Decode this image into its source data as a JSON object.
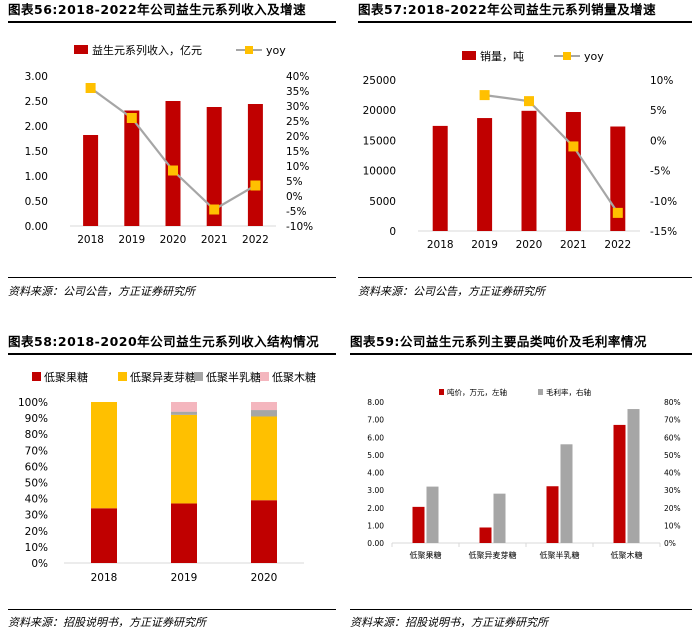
{
  "colors": {
    "red": "#C00000",
    "gold": "#FFC000",
    "grey": "#A6A6A6",
    "line": "#A6A6A6",
    "pink": "#F4B6BE",
    "axis": "#D9D9D9"
  },
  "charts": {
    "c56": {
      "title": "图表56:2018-2022年公司益生元系列收入及增速",
      "source": "资料来源：公司公告，方正证券研究所",
      "chart_data": {
        "type": "bar",
        "categories": [
          "2018",
          "2019",
          "2020",
          "2021",
          "2022"
        ],
        "series": [
          {
            "name": "益生元系列收入，亿元",
            "kind": "bar",
            "axis": "left",
            "values": [
              1.82,
              2.31,
              2.5,
              2.38,
              2.44
            ]
          },
          {
            "name": "yoy",
            "kind": "line",
            "axis": "right",
            "values": [
              36.0,
              26.0,
              8.5,
              -4.5,
              3.5
            ]
          }
        ],
        "y_left": {
          "min": 0,
          "max": 3,
          "ticks": [
            "0.00",
            "0.50",
            "1.00",
            "1.50",
            "2.00",
            "2.50",
            "3.00"
          ]
        },
        "y_right": {
          "min": -10,
          "max": 40,
          "ticks": [
            "-10%",
            "-5%",
            "0%",
            "5%",
            "10%",
            "15%",
            "20%",
            "25%",
            "30%",
            "35%",
            "40%"
          ]
        }
      }
    },
    "c57": {
      "title": "图表57:2018-2022年公司益生元系列销量及增速",
      "source": "资料来源：公司公告，方正证券研究所",
      "chart_data": {
        "type": "bar",
        "categories": [
          "2018",
          "2019",
          "2020",
          "2021",
          "2022"
        ],
        "series": [
          {
            "name": "销量，吨",
            "kind": "bar",
            "axis": "left",
            "values": [
              17400,
              18700,
              19900,
              19700,
              17300
            ]
          },
          {
            "name": "yoy",
            "kind": "line",
            "axis": "right",
            "values": [
              null,
              7.5,
              6.5,
              -1.0,
              -12.0
            ]
          }
        ],
        "y_left": {
          "min": 0,
          "max": 25000,
          "ticks": [
            "0",
            "5000",
            "10000",
            "15000",
            "20000",
            "25000"
          ]
        },
        "y_right": {
          "min": -15,
          "max": 10,
          "ticks": [
            "-15%",
            "-10%",
            "-5%",
            "0%",
            "5%",
            "10%"
          ]
        }
      }
    },
    "c58": {
      "title": "图表58:2018-2020年公司益生元系列收入结构情况",
      "source": "资料来源：招股说明书，方正证券研究所",
      "chart_data": {
        "type": "bar",
        "stacked": true,
        "categories": [
          "2018",
          "2019",
          "2020"
        ],
        "series": [
          {
            "name": "低聚果糖",
            "values": [
              34,
              37,
              39
            ]
          },
          {
            "name": "低聚异麦芽糖",
            "values": [
              66,
              55,
              52
            ]
          },
          {
            "name": "低聚半乳糖",
            "values": [
              0,
              2,
              4
            ]
          },
          {
            "name": "低聚木糖",
            "values": [
              0,
              6,
              5
            ]
          }
        ],
        "y": {
          "min": 0,
          "max": 100,
          "ticks": [
            "0%",
            "10%",
            "20%",
            "30%",
            "40%",
            "50%",
            "60%",
            "70%",
            "80%",
            "90%",
            "100%"
          ]
        }
      }
    },
    "c59": {
      "title": "图表59:公司益生元系列主要品类吨价及毛利率情况",
      "source": "资料来源：招股说明书，方正证券研究所",
      "chart_data": {
        "type": "bar",
        "categories": [
          "低聚果糖",
          "低聚异麦芽糖",
          "低聚半乳糖",
          "低聚木糖"
        ],
        "series": [
          {
            "name": "吨价，万元，左轴",
            "axis": "left",
            "values": [
              2.05,
              0.88,
              3.22,
              6.7
            ]
          },
          {
            "name": "毛利率，右轴",
            "axis": "right",
            "values": [
              32,
              28,
              56,
              76
            ]
          }
        ],
        "y_left": {
          "min": 0,
          "max": 8,
          "ticks": [
            "0.00",
            "1.00",
            "2.00",
            "3.00",
            "4.00",
            "5.00",
            "6.00",
            "7.00",
            "8.00"
          ]
        },
        "y_right": {
          "min": 0,
          "max": 80,
          "ticks": [
            "0%",
            "10%",
            "20%",
            "30%",
            "40%",
            "50%",
            "60%",
            "70%",
            "80%"
          ]
        }
      }
    }
  }
}
